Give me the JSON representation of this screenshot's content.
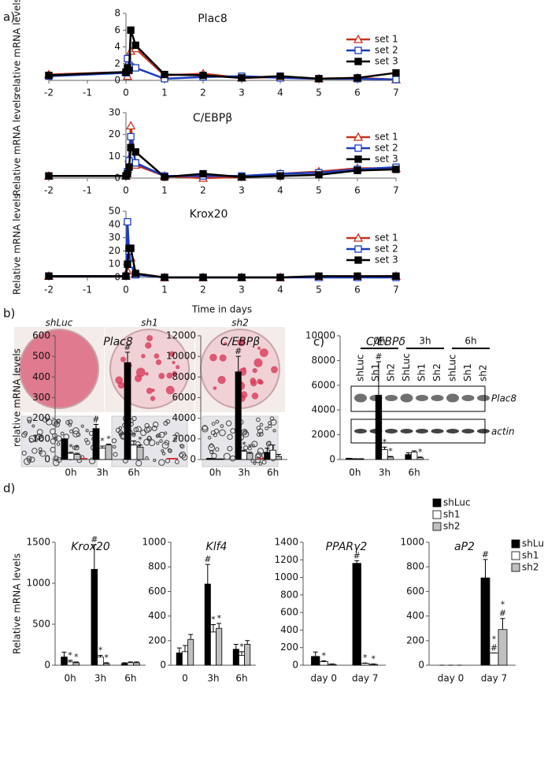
{
  "panel_labels": [
    "a)",
    "b)",
    "c)",
    "d)"
  ],
  "panel_b": {
    "conditions": [
      "shLuc",
      "sh1",
      "sh2"
    ]
  },
  "panel_c": {
    "times": [
      "0h",
      "3h",
      "6h"
    ],
    "lanes": [
      "shLuc",
      "Sh1",
      "Sh2",
      "ShLuc",
      "Sh1",
      "Sh2",
      "shLuc",
      "Sh1",
      "sh2"
    ],
    "bands": [
      "Plac8",
      "actin"
    ]
  },
  "chart_data": [
    {
      "type": "line",
      "title": "Plac8",
      "y_label": "relative mRNA levels",
      "x": [
        -2,
        0,
        0.04,
        0.08,
        0.125,
        0.25,
        1,
        2,
        3,
        4,
        5,
        6,
        7
      ],
      "xlim": [
        -2,
        7
      ],
      "xticks": [
        -2,
        -1,
        0,
        1,
        2,
        3,
        4,
        5,
        6,
        7
      ],
      "ylim": [
        0,
        8
      ],
      "yticks": [
        0,
        2,
        4,
        6,
        8
      ],
      "series": [
        {
          "name": "set 1",
          "color": "#c8321e",
          "marker": "triangle",
          "values": [
            0.7,
            1.0,
            0.5,
            2.0,
            3.5,
            3.8,
            0.6,
            0.8,
            0.3,
            0.4,
            0.2,
            0.3,
            0.1
          ]
        },
        {
          "name": "set 2",
          "color": "#1a3cc0",
          "marker": "square",
          "values": [
            0.5,
            0.9,
            2.6,
            1.8,
            1.6,
            1.5,
            0.2,
            0.4,
            0.5,
            0.3,
            0.2,
            0.2,
            0.1
          ]
        },
        {
          "name": "set 3",
          "color": "#000000",
          "marker": "filled-square",
          "values": [
            0.6,
            1.0,
            1.5,
            1.2,
            6.0,
            4.2,
            0.7,
            0.6,
            0.3,
            0.5,
            0.2,
            0.3,
            0.9
          ]
        }
      ]
    },
    {
      "type": "line",
      "title": "C/EBPβ",
      "y_label": "Relative mRNA levels",
      "x": [
        -2,
        0,
        0.04,
        0.08,
        0.125,
        0.25,
        1,
        2,
        3,
        4,
        5,
        6,
        7
      ],
      "xlim": [
        -2,
        7
      ],
      "xticks": [
        -2,
        -1,
        0,
        1,
        2,
        3,
        4,
        5,
        6,
        7
      ],
      "ylim": [
        0,
        30
      ],
      "yticks": [
        0,
        10,
        20,
        30
      ],
      "series": [
        {
          "name": "set 1",
          "color": "#c8321e",
          "marker": "triangle",
          "values": [
            1,
            1,
            4,
            9,
            24,
            6,
            1,
            0,
            0.5,
            2,
            3,
            4.5,
            4.5
          ]
        },
        {
          "name": "set 2",
          "color": "#1a3cc0",
          "marker": "square",
          "values": [
            1,
            1,
            3,
            8,
            19,
            7,
            1,
            1,
            1,
            2,
            2.5,
            4,
            5
          ]
        },
        {
          "name": "set 3",
          "color": "#000000",
          "marker": "filled-square",
          "values": [
            1,
            1,
            2,
            5,
            14,
            12,
            0.5,
            2,
            0.5,
            1,
            1.5,
            3.5,
            4
          ]
        }
      ]
    },
    {
      "type": "line",
      "title": "Krox20",
      "y_label": "Relative mRNA levels",
      "x_label": "Time in days",
      "x": [
        -2,
        0,
        0.04,
        0.08,
        0.125,
        0.25,
        1,
        2,
        3,
        4,
        5,
        6,
        7
      ],
      "xlim": [
        -2,
        7
      ],
      "xticks": [
        -2,
        -1,
        0,
        1,
        2,
        3,
        4,
        5,
        6,
        7
      ],
      "ylim": [
        0,
        50
      ],
      "yticks": [
        0,
        10,
        20,
        30,
        40,
        50
      ],
      "series": [
        {
          "name": "set 1",
          "color": "#c8321e",
          "marker": "triangle",
          "values": [
            1,
            1,
            5,
            10,
            15,
            3,
            0,
            0,
            0,
            0,
            0.5,
            0.5,
            1
          ]
        },
        {
          "name": "set 2",
          "color": "#1a3cc0",
          "marker": "square",
          "values": [
            1,
            1,
            42,
            20,
            10,
            2,
            0,
            0,
            0,
            0,
            0,
            0,
            0
          ]
        },
        {
          "name": "set 3",
          "color": "#000000",
          "marker": "filled-square",
          "values": [
            1,
            1,
            10,
            22,
            22,
            3,
            0,
            0,
            0,
            0,
            1,
            1,
            1
          ]
        }
      ]
    },
    {
      "type": "bar",
      "title": "Plac8",
      "y_label": "relative mRNA levels",
      "categories": [
        "0h",
        "3h",
        "6h"
      ],
      "ylim": [
        0,
        600
      ],
      "yticks": [
        0,
        100,
        200,
        300,
        400,
        500,
        600
      ],
      "series": [
        {
          "color": "#000000",
          "values": [
            100,
            150,
            470
          ],
          "errors": [
            0,
            20,
            50
          ],
          "marks": [
            null,
            [
              "#"
            ],
            [
              "#"
            ]
          ]
        },
        {
          "color": "#ffffff",
          "values": [
            30,
            55,
            70
          ],
          "errors": [
            5,
            10,
            20
          ],
          "marks": [
            [
              "*"
            ],
            [
              "*"
            ],
            [
              "*"
            ]
          ]
        },
        {
          "color": "#c0c0c0",
          "values": [
            25,
            70,
            60
          ],
          "errors": [
            5,
            5,
            10
          ],
          "marks": [
            [
              "*"
            ],
            [
              "*"
            ],
            [
              "*"
            ]
          ]
        }
      ]
    },
    {
      "type": "bar",
      "title": "C/EBPβ",
      "categories": [
        "0h",
        "3h",
        "6h"
      ],
      "ylim": [
        0,
        12000
      ],
      "yticks": [
        0,
        2000,
        4000,
        6000,
        8000,
        10000,
        12000
      ],
      "series": [
        {
          "color": "#000000",
          "values": [
            100,
            8500,
            700
          ],
          "errors": [
            0,
            1500,
            400
          ],
          "marks": [
            null,
            [
              "#"
            ],
            null
          ]
        },
        {
          "color": "#ffffff",
          "values": [
            50,
            800,
            900
          ],
          "errors": [
            10,
            100,
            500
          ],
          "marks": [
            null,
            [
              "*"
            ],
            null
          ]
        },
        {
          "color": "#c0c0c0",
          "values": [
            50,
            600,
            300
          ],
          "errors": [
            10,
            100,
            200
          ],
          "marks": [
            null,
            [
              "*"
            ],
            null
          ]
        }
      ]
    },
    {
      "type": "bar",
      "title": "C/EBPδ",
      "categories": [
        "0h",
        "3h",
        "6h"
      ],
      "ylim": [
        0,
        10000
      ],
      "yticks": [
        0,
        2000,
        4000,
        6000,
        8000,
        10000
      ],
      "series": [
        {
          "name": "shLuc",
          "color": "#000000",
          "values": [
            100,
            5200,
            400
          ],
          "errors": [
            0,
            2700,
            150
          ],
          "marks": [
            null,
            [
              "#"
            ],
            null
          ]
        },
        {
          "name": "sh1",
          "color": "#ffffff",
          "values": [
            50,
            800,
            600
          ],
          "errors": [
            10,
            200,
            100
          ],
          "marks": [
            null,
            [
              "*"
            ],
            null
          ]
        },
        {
          "name": "sh2",
          "color": "#c0c0c0",
          "values": [
            50,
            200,
            150
          ],
          "errors": [
            10,
            50,
            50
          ],
          "marks": [
            null,
            [
              "*"
            ],
            [
              "*"
            ]
          ]
        }
      ]
    },
    {
      "type": "bar",
      "title": "Krox20",
      "y_label": "Relative mRNA levels",
      "categories": [
        "0h",
        "3h",
        "6h"
      ],
      "ylim": [
        0,
        1500
      ],
      "yticks": [
        0,
        500,
        1000,
        1500
      ],
      "series": [
        {
          "color": "#000000",
          "values": [
            100,
            1170,
            20
          ],
          "errors": [
            60,
            300,
            10
          ],
          "marks": [
            null,
            [
              "#"
            ],
            null
          ]
        },
        {
          "color": "#ffffff",
          "values": [
            40,
            100,
            30
          ],
          "errors": [
            20,
            20,
            10
          ],
          "marks": [
            [
              "*"
            ],
            [
              "*"
            ],
            null
          ]
        },
        {
          "color": "#c0c0c0",
          "values": [
            30,
            20,
            30
          ],
          "errors": [
            10,
            10,
            10
          ],
          "marks": [
            [
              "*"
            ],
            [
              "*"
            ],
            null
          ]
        }
      ]
    },
    {
      "type": "bar",
      "title": "Klf4",
      "categories": [
        "0",
        "3h",
        "6h"
      ],
      "ylim": [
        0,
        1000
      ],
      "yticks": [
        0,
        200,
        400,
        600,
        800,
        1000
      ],
      "series": [
        {
          "color": "#000000",
          "values": [
            100,
            660,
            130
          ],
          "errors": [
            40,
            160,
            40
          ],
          "marks": [
            null,
            [
              "#"
            ],
            null
          ]
        },
        {
          "color": "#ffffff",
          "values": [
            110,
            270,
            80
          ],
          "errors": [
            50,
            60,
            30
          ],
          "marks": [
            null,
            [
              "*"
            ],
            [
              "*"
            ]
          ]
        },
        {
          "color": "#c0c0c0",
          "values": [
            210,
            300,
            170
          ],
          "errors": [
            40,
            40,
            30
          ],
          "marks": [
            null,
            [
              "*"
            ],
            null
          ]
        }
      ]
    },
    {
      "type": "bar",
      "title": "PPARγ2",
      "categories": [
        "day 0",
        "day 7"
      ],
      "ylim": [
        0,
        1400
      ],
      "yticks": [
        0,
        200,
        400,
        600,
        800,
        1000,
        1200,
        1400
      ],
      "series": [
        {
          "color": "#000000",
          "values": [
            100,
            1160
          ],
          "errors": [
            50,
            30
          ],
          "marks": [
            null,
            [
              "#"
            ]
          ]
        },
        {
          "color": "#ffffff",
          "values": [
            40,
            20
          ],
          "errors": [
            10,
            5
          ],
          "marks": [
            [
              "*"
            ],
            [
              "*"
            ]
          ]
        },
        {
          "color": "#c0c0c0",
          "values": [
            10,
            10
          ],
          "errors": [
            5,
            5
          ],
          "marks": [
            null,
            [
              "*"
            ]
          ]
        }
      ]
    },
    {
      "type": "bar",
      "title": "aP2",
      "categories": [
        "day 0",
        "day 7"
      ],
      "ylim": [
        0,
        1000
      ],
      "yticks": [
        0,
        200,
        400,
        600,
        800,
        1000
      ],
      "series": [
        {
          "name": "shLuc",
          "color": "#000000",
          "values": [
            0,
            710
          ],
          "errors": [
            0,
            150
          ],
          "marks": [
            null,
            [
              "#"
            ]
          ]
        },
        {
          "name": "sh1",
          "color": "#ffffff",
          "values": [
            0,
            100
          ],
          "errors": [
            0,
            0
          ],
          "marks": [
            null,
            [
              "#",
              "*"
            ]
          ]
        },
        {
          "name": "sh2",
          "color": "#c0c0c0",
          "values": [
            0,
            290
          ],
          "errors": [
            0,
            90
          ],
          "marks": [
            null,
            [
              "#",
              "*"
            ]
          ]
        }
      ]
    }
  ]
}
